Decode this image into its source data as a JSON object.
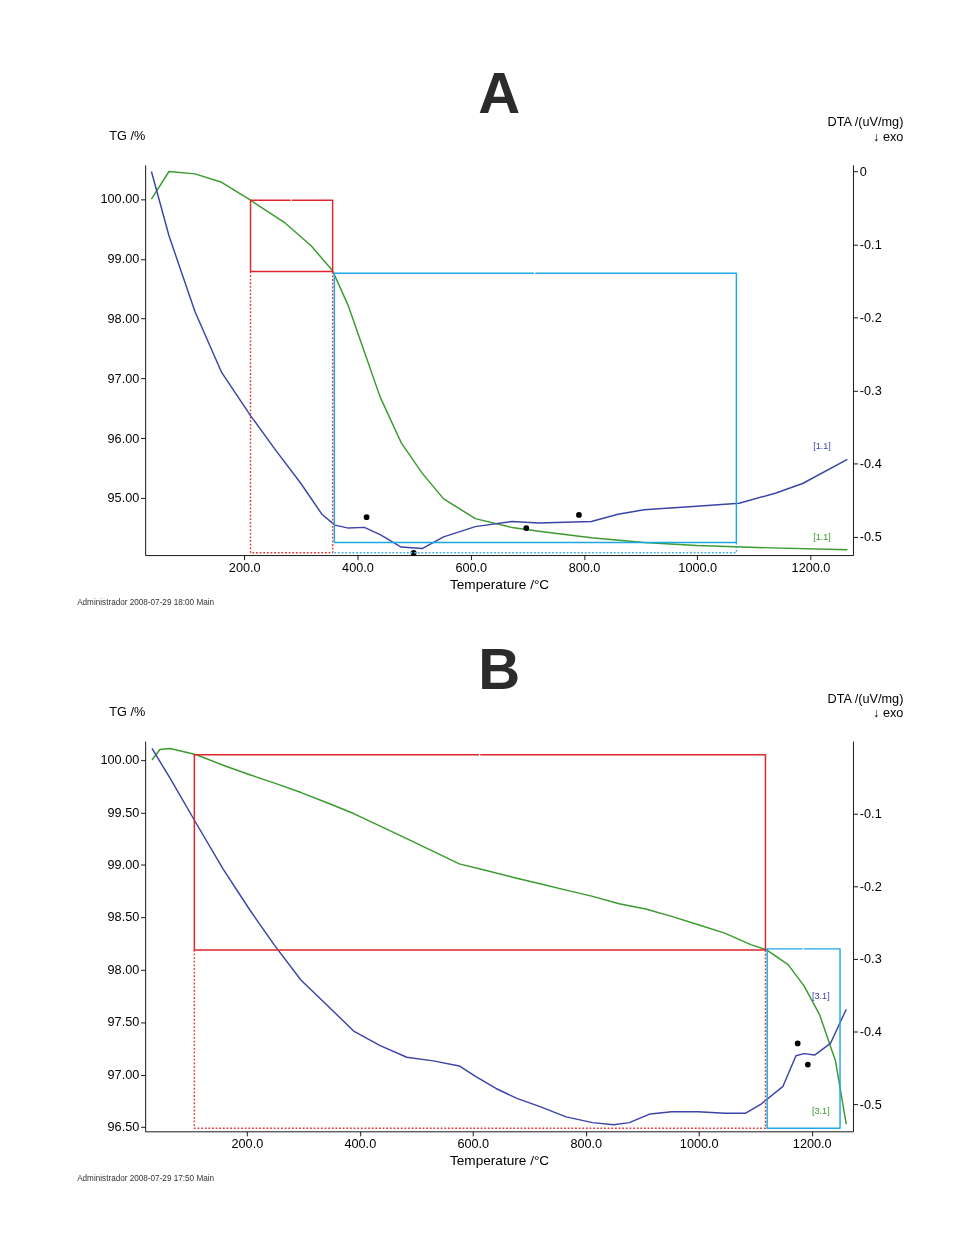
{
  "chart_data": [
    {
      "type": "line",
      "title": "A",
      "xlabel": "Temperature /°C",
      "ylabel": "TG /%",
      "y2label": "DTA /(uV/mg)\n↓ exo",
      "xlim": [
        25,
        1275
      ],
      "ylim": [
        94.05,
        100.57
      ],
      "y2lim": [
        -0.525,
        0.009
      ],
      "xticks": [
        {
          "value": 200,
          "label": "200.0"
        },
        {
          "value": 400,
          "label": "400.0"
        },
        {
          "value": 600,
          "label": "600.0"
        },
        {
          "value": 800,
          "label": "800.0"
        },
        {
          "value": 1000,
          "label": "1000.0"
        },
        {
          "value": 1200,
          "label": "1200.0"
        }
      ],
      "yticks": [
        {
          "value": 95,
          "label": "95.00"
        },
        {
          "value": 96,
          "label": "96.00"
        },
        {
          "value": 97,
          "label": "97.00"
        },
        {
          "value": 98,
          "label": "98.00"
        },
        {
          "value": 99,
          "label": "99.00"
        },
        {
          "value": 100,
          "label": "100.00"
        }
      ],
      "y2ticks": [
        0,
        -0.1,
        -0.2,
        -0.3,
        -0.4,
        -0.5
      ],
      "grid": false,
      "legend": false,
      "series": [
        {
          "type": "line",
          "color": "#3a9a2e",
          "line_style": "solid",
          "x": [
            36,
            67,
            113,
            160,
            211,
            272,
            318,
            356,
            384,
            412,
            440,
            477,
            514,
            552,
            608,
            673,
            720,
            813,
            906,
            999,
            1093,
            1265
          ],
          "values": [
            100.0,
            100.46,
            100.42,
            100.28,
            99.98,
            99.6,
            99.22,
            98.8,
            98.21,
            97.45,
            96.69,
            95.93,
            95.42,
            94.99,
            94.66,
            94.51,
            94.45,
            94.34,
            94.26,
            94.21,
            94.18,
            94.14
          ]
        },
        {
          "type": "line",
          "axis": "y2",
          "color": "#3b44a8",
          "line_style": "solid",
          "x": [
            36,
            67,
            113,
            160,
            211,
            253,
            300,
            337,
            360,
            384,
            412,
            440,
            477,
            514,
            552,
            608,
            673,
            720,
            813,
            860,
            906,
            999,
            1074,
            1139,
            1186,
            1265
          ],
          "values": [
            0.0,
            -0.088,
            -0.192,
            -0.275,
            -0.334,
            -0.379,
            -0.427,
            -0.469,
            -0.484,
            -0.488,
            -0.487,
            -0.497,
            -0.514,
            -0.516,
            -0.5,
            -0.486,
            -0.479,
            -0.481,
            -0.479,
            -0.469,
            -0.463,
            -0.458,
            -0.454,
            -0.44,
            -0.427,
            -0.394
          ]
        },
        {
          "type": "scatter",
          "axis": "y2",
          "color": "#000000",
          "marker": "circle",
          "x": [
            416,
            499,
            698,
            791
          ],
          "values": [
            -0.473,
            -0.522,
            -0.488,
            -0.47
          ]
        },
        {
          "type": "line",
          "color": "#e0262b",
          "line_style": "solid",
          "x": [
            284,
            356,
            356,
            211,
            211,
            282
          ],
          "values": [
            99.98,
            99.98,
            98.79,
            98.79,
            99.98,
            99.98
          ]
        },
        {
          "type": "line",
          "color": "#e23a3a",
          "line_style": "dotted",
          "x": [
            211,
            211,
            356,
            356
          ],
          "values": [
            98.79,
            94.09,
            94.09,
            98.79
          ]
        },
        {
          "type": "line",
          "color": "#1ea7e0",
          "line_style": "solid",
          "x": [
            714,
            1069,
            1069,
            359,
            359,
            712
          ],
          "values": [
            98.76,
            98.76,
            94.26,
            94.26,
            98.76,
            98.76
          ]
        },
        {
          "type": "line",
          "color": "#3ab0e2",
          "line_style": "dotted",
          "x": [
            359,
            1069,
            1069
          ],
          "values": [
            94.09,
            94.09,
            94.26
          ]
        }
      ],
      "annotations": [
        "[1.1]",
        "[1.1]",
        "Administrador 2008-07-29 18:00 Main"
      ]
    },
    {
      "type": "line",
      "title": "B",
      "xlabel": "Temperature /°C",
      "ylabel": "TG /%",
      "y2label": "DTA /(uV/mg)\n↓ exo",
      "xlim": [
        20,
        1273
      ],
      "ylim": [
        96.46,
        100.18
      ],
      "y2lim": [
        -0.537,
        0.0
      ],
      "xticks": [
        {
          "value": 200,
          "label": "200.0"
        },
        {
          "value": 400,
          "label": "400.0"
        },
        {
          "value": 600,
          "label": "600.0"
        },
        {
          "value": 800,
          "label": "800.0"
        },
        {
          "value": 1000,
          "label": "1000.0"
        },
        {
          "value": 1200,
          "label": "1200.0"
        }
      ],
      "yticks": [
        {
          "value": 96.5,
          "label": "96.50"
        },
        {
          "value": 97,
          "label": "97.00"
        },
        {
          "value": 97.5,
          "label": "97.50"
        },
        {
          "value": 98,
          "label": "98.00"
        },
        {
          "value": 98.5,
          "label": "98.50"
        },
        {
          "value": 99,
          "label": "99.00"
        },
        {
          "value": 99.5,
          "label": "99.50"
        },
        {
          "value": 100,
          "label": "100.00"
        }
      ],
      "y2ticks": [
        -0.1,
        -0.2,
        -0.3,
        -0.4,
        -0.5
      ],
      "grid": false,
      "legend": false,
      "series": [
        {
          "type": "line",
          "color": "#3a9a2e",
          "line_style": "solid",
          "x": [
            32,
            46,
            64,
            111,
            158,
            205,
            249,
            296,
            343,
            389,
            436,
            483,
            530,
            576,
            622,
            672,
            719,
            765,
            812,
            859,
            906,
            952,
            999,
            1046,
            1092,
            1120,
            1158,
            1186,
            1214,
            1242,
            1261
          ],
          "values": [
            100.0,
            100.1,
            100.11,
            100.05,
            99.95,
            99.86,
            99.78,
            99.69,
            99.59,
            99.49,
            99.37,
            99.25,
            99.13,
            99.01,
            98.95,
            98.88,
            98.82,
            98.76,
            98.7,
            98.63,
            98.58,
            98.51,
            98.43,
            98.35,
            98.24,
            98.19,
            98.05,
            97.85,
            97.57,
            97.13,
            96.53
          ]
        },
        {
          "type": "line",
          "axis": "y2",
          "color": "#3b44a8",
          "line_style": "solid",
          "x": [
            32,
            64,
            111,
            158,
            205,
            249,
            296,
            343,
            389,
            436,
            483,
            530,
            576,
            604,
            641,
            679,
            719,
            765,
            812,
            849,
            877,
            914,
            952,
            999,
            1046,
            1083,
            1111,
            1149,
            1172,
            1186,
            1205,
            1233,
            1261
          ],
          "values": [
            -0.01,
            -0.051,
            -0.114,
            -0.176,
            -0.232,
            -0.281,
            -0.329,
            -0.364,
            -0.399,
            -0.419,
            -0.435,
            -0.44,
            -0.447,
            -0.461,
            -0.478,
            -0.492,
            -0.503,
            -0.517,
            -0.525,
            -0.528,
            -0.525,
            -0.513,
            -0.51,
            -0.51,
            -0.512,
            -0.512,
            -0.499,
            -0.475,
            -0.433,
            -0.43,
            -0.432,
            -0.416,
            -0.369
          ]
        },
        {
          "type": "scatter",
          "axis": "y2",
          "color": "#000000",
          "marker": "circle",
          "x": [
            1175,
            1193
          ],
          "values": [
            -0.416,
            -0.445
          ]
        },
        {
          "type": "line",
          "color": "#e0262b",
          "line_style": "solid",
          "x": [
            613,
            1118,
            1118,
            107,
            107,
            611
          ],
          "values": [
            100.05,
            100.05,
            98.19,
            98.19,
            100.05,
            100.05
          ]
        },
        {
          "type": "line",
          "color": "#e23a3a",
          "line_style": "dotted",
          "x": [
            107,
            107,
            1118,
            1118
          ],
          "values": [
            98.19,
            96.49,
            96.49,
            98.19
          ]
        },
        {
          "type": "line",
          "color": "#1ea7e0",
          "line_style": "solid",
          "x": [
            1186,
            1250,
            1250,
            1121,
            1121,
            1184
          ],
          "values": [
            98.2,
            98.2,
            96.49,
            96.49,
            98.2,
            98.2
          ]
        }
      ],
      "annotations": [
        "[3.1]",
        "[3.1]",
        "Administrador 2008-07-29 17:50 Main"
      ]
    }
  ]
}
